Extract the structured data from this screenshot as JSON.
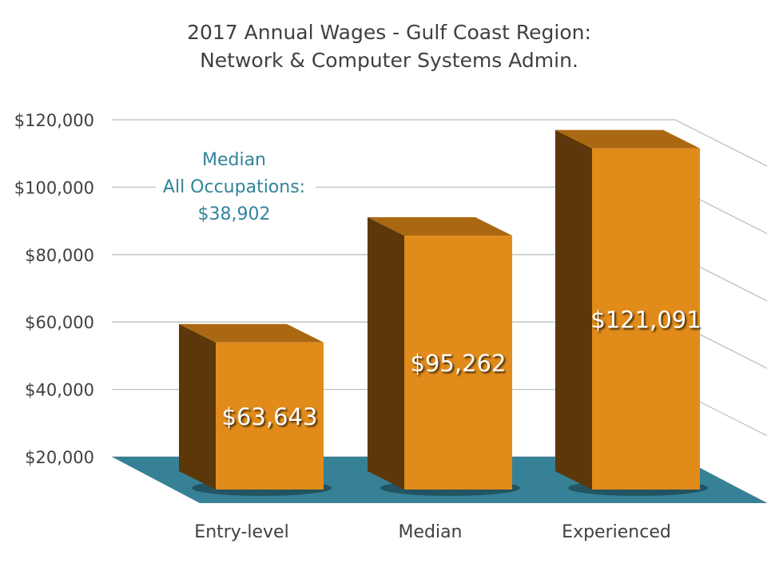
{
  "chart_data": {
    "type": "bar",
    "title": [
      "2017 Annual Wages - Gulf Coast Region:",
      "Network & Computer Systems Admin."
    ],
    "categories": [
      "Entry-level",
      "Median",
      "Experienced"
    ],
    "values": [
      63643,
      95262,
      121091
    ],
    "data_labels": [
      "$63,643",
      "$95,262",
      "$121,091"
    ],
    "y_ticks": [
      "$20,000",
      "$40,000",
      "$60,000",
      "$80,000",
      "$100,000",
      "$120,000"
    ],
    "ylim": [
      20000,
      120000
    ],
    "grid": true,
    "style": "3d-column",
    "annotation": [
      "Median",
      "All Occupations:",
      "$38,902"
    ],
    "colors": {
      "bar_front": "#E08B1A",
      "bar_side": "#5C3709",
      "bar_top": "#AB6812",
      "floor": "#378196",
      "annotation": "#31849B"
    }
  }
}
